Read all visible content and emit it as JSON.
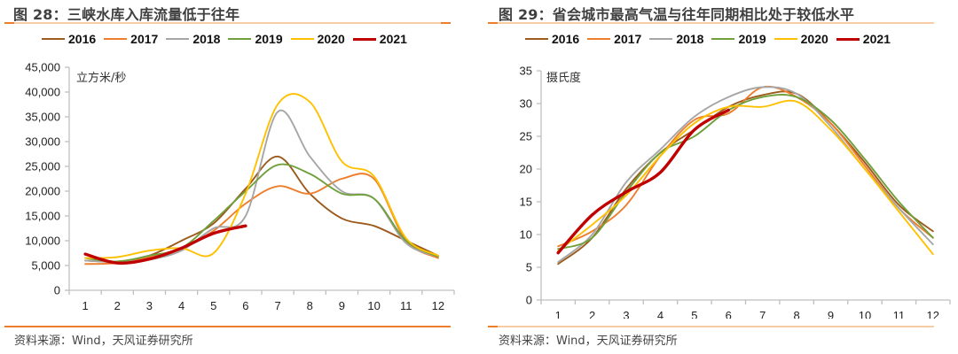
{
  "chart_data": [
    {
      "type": "line",
      "figure_label": "图 28：",
      "title": "三峡水库入库流量低于往年",
      "unit_label": "立方米/秒",
      "xlabel": "",
      "ylabel": "立方米/秒",
      "x": [
        1,
        2,
        3,
        4,
        5,
        6,
        7,
        8,
        9,
        10,
        11,
        12
      ],
      "x_tick_labels": [
        "1",
        "2",
        "3",
        "4",
        "5",
        "6",
        "7",
        "8",
        "9",
        "10",
        "11",
        "12"
      ],
      "ylim": [
        0,
        45000
      ],
      "y_ticks": [
        0,
        5000,
        10000,
        15000,
        20000,
        25000,
        30000,
        35000,
        40000,
        45000
      ],
      "y_tick_labels": [
        "0",
        "5,000",
        "10,000",
        "15,000",
        "20,000",
        "25,000",
        "30,000",
        "35,000",
        "40,000",
        "45,000"
      ],
      "grid": false,
      "legend_position": "top",
      "series": [
        {
          "name": "2016",
          "color": "#9c5a1c",
          "values": [
            6000,
            5800,
            7000,
            10000,
            13500,
            20500,
            27000,
            19500,
            14500,
            13000,
            10000,
            7000
          ]
        },
        {
          "name": "2017",
          "color": "#ee7d2c",
          "values": [
            5300,
            5500,
            6800,
            8500,
            12000,
            17500,
            21000,
            19500,
            22500,
            22500,
            10000,
            6500
          ]
        },
        {
          "name": "2018",
          "color": "#a6a6a6",
          "values": [
            6000,
            5700,
            6200,
            8000,
            12500,
            15000,
            36000,
            27000,
            20000,
            18500,
            9500,
            6800
          ]
        },
        {
          "name": "2019",
          "color": "#70a03c",
          "values": [
            6500,
            5800,
            7000,
            8500,
            14000,
            20000,
            25300,
            23500,
            19500,
            18500,
            10000,
            6800
          ]
        },
        {
          "name": "2020",
          "color": "#ffc000",
          "values": [
            6500,
            6700,
            8000,
            8500,
            7500,
            19500,
            37500,
            38000,
            26000,
            23000,
            10500,
            7000
          ]
        },
        {
          "name": "2021",
          "color": "#c00000",
          "values": [
            7300,
            5500,
            6300,
            8500,
            11500,
            13000
          ]
        }
      ]
    },
    {
      "type": "line",
      "figure_label": "图 29：",
      "title": "省会城市最高气温与往年同期相比处于较低水平",
      "unit_label": "摄氏度",
      "xlabel": "",
      "ylabel": "摄氏度",
      "x": [
        1,
        2,
        3,
        4,
        5,
        6,
        7,
        8,
        9,
        10,
        11,
        12
      ],
      "x_tick_labels": [
        "1",
        "2",
        "3",
        "4",
        "5",
        "6",
        "7",
        "8",
        "9",
        "10",
        "11",
        "12"
      ],
      "ylim": [
        0,
        35
      ],
      "y_ticks": [
        0,
        5,
        10,
        15,
        20,
        25,
        30,
        35
      ],
      "y_tick_labels": [
        "0",
        "5",
        "10",
        "15",
        "20",
        "25",
        "30",
        "35"
      ],
      "grid": false,
      "legend_position": "top",
      "series": [
        {
          "name": "2016",
          "color": "#9c5a1c",
          "values": [
            5.5,
            9.5,
            17.0,
            22.5,
            26.0,
            29.5,
            31.3,
            31.5,
            27.0,
            21.0,
            14.5,
            10.5
          ]
        },
        {
          "name": "2017",
          "color": "#ee7d2c",
          "values": [
            8.2,
            10.5,
            14.5,
            22.0,
            27.5,
            28.5,
            32.5,
            31.0,
            27.0,
            20.5,
            14.0,
            9.5
          ]
        },
        {
          "name": "2018",
          "color": "#a6a6a6",
          "values": [
            5.8,
            10.0,
            18.0,
            23.0,
            28.0,
            31.0,
            32.5,
            31.5,
            26.5,
            20.0,
            14.0,
            8.5
          ]
        },
        {
          "name": "2019",
          "color": "#70a03c",
          "values": [
            7.8,
            9.5,
            16.5,
            22.5,
            25.0,
            29.0,
            31.0,
            31.0,
            27.5,
            21.5,
            15.0,
            9.5
          ]
        },
        {
          "name": "2020",
          "color": "#ffc000",
          "values": [
            7.5,
            11.5,
            16.0,
            22.0,
            27.0,
            29.5,
            29.5,
            30.3,
            26.0,
            20.0,
            13.5,
            7.0
          ]
        },
        {
          "name": "2021",
          "color": "#c00000",
          "values": [
            7.2,
            13.0,
            16.5,
            19.5,
            26.0,
            29.0
          ]
        }
      ]
    }
  ],
  "source_text": "资料来源：Wind，天风证券研究所"
}
